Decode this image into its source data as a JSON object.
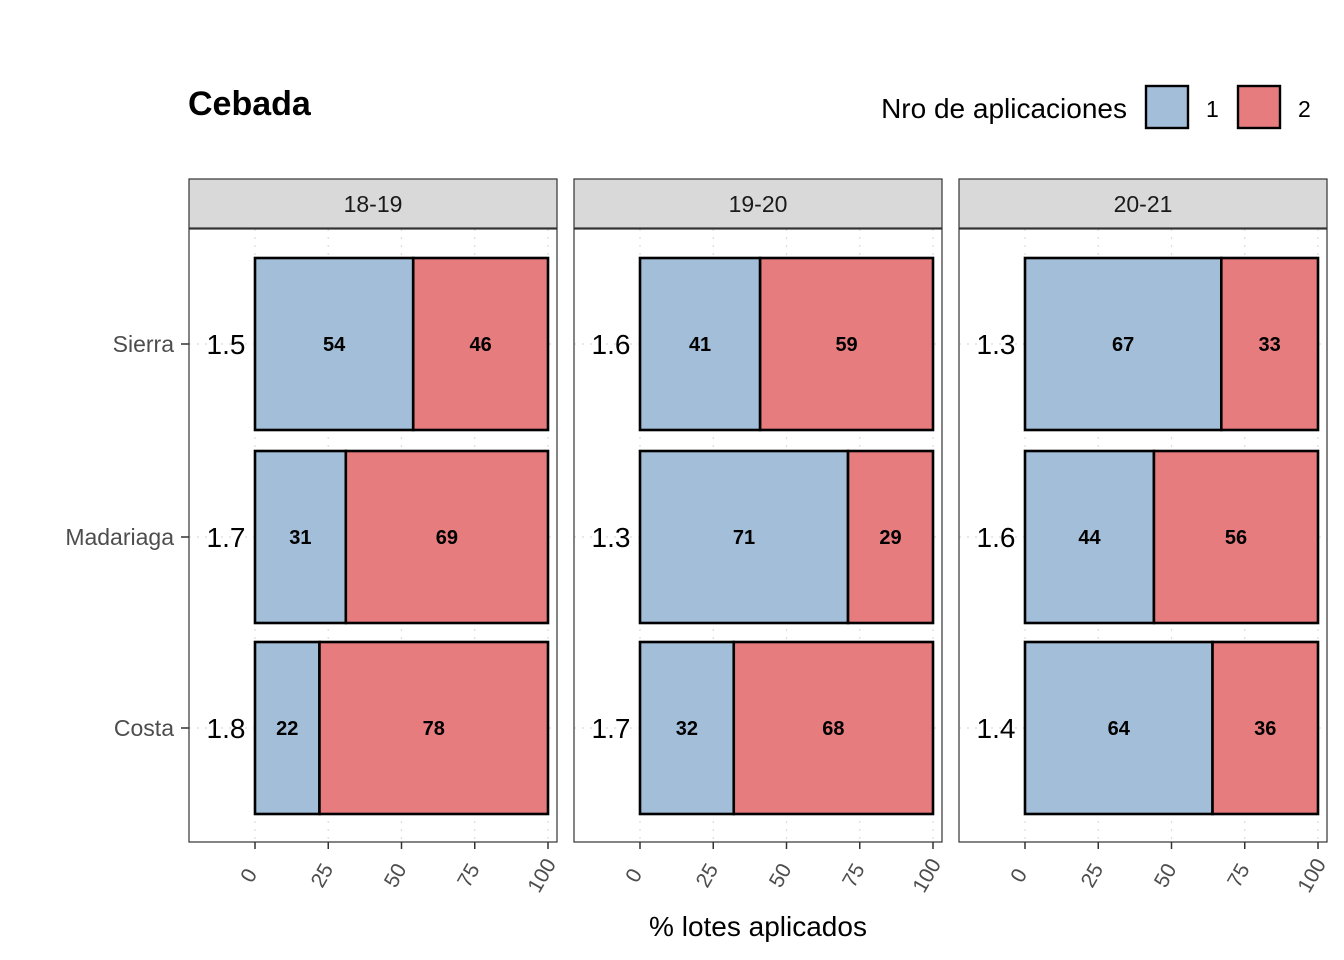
{
  "chart_data": {
    "type": "bar",
    "orientation": "horizontal",
    "stacked": true,
    "title": "Cebada",
    "xlabel": "% lotes aplicados",
    "ylabel": "",
    "xlim": [
      0,
      100
    ],
    "xticks": [
      "0",
      "25",
      "50",
      "75",
      "100"
    ],
    "grid": true,
    "legend": {
      "title": "Nro de aplicaciones",
      "placement": "top-right",
      "entries": [
        {
          "label": "1",
          "color": "#a2bed9"
        },
        {
          "label": "2",
          "color": "#e77c7e"
        }
      ]
    },
    "categories": [
      "Sierra",
      "Madariaga",
      "Costa"
    ],
    "panels": [
      {
        "label": "18-19",
        "means": [
          "1.5",
          "1.7",
          "1.8"
        ],
        "series": [
          {
            "name": "1",
            "values": [
              54,
              31,
              22
            ]
          },
          {
            "name": "2",
            "values": [
              46,
              69,
              78
            ]
          }
        ]
      },
      {
        "label": "19-20",
        "means": [
          "1.6",
          "1.3",
          "1.7"
        ],
        "series": [
          {
            "name": "1",
            "values": [
              41,
              71,
              32
            ]
          },
          {
            "name": "2",
            "values": [
              59,
              29,
              68
            ]
          }
        ]
      },
      {
        "label": "20-21",
        "means": [
          "1.3",
          "1.6",
          "1.4"
        ],
        "series": [
          {
            "name": "1",
            "values": [
              67,
              44,
              64
            ]
          },
          {
            "name": "2",
            "values": [
              33,
              56,
              36
            ]
          }
        ]
      }
    ]
  }
}
